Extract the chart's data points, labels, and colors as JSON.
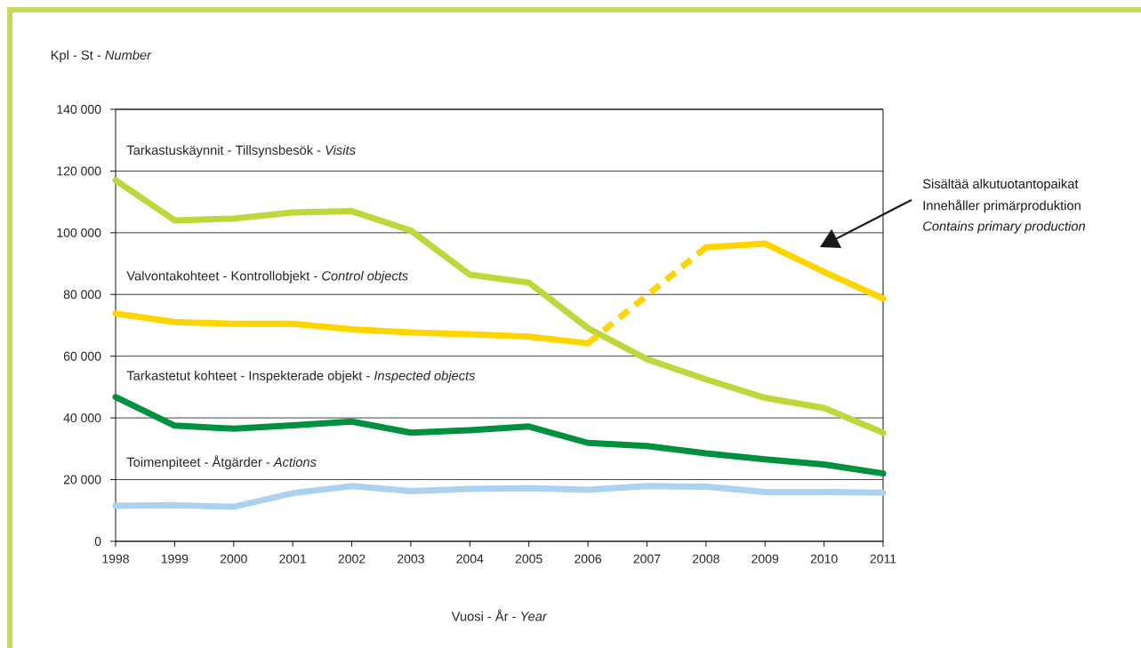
{
  "chart_data": {
    "type": "line",
    "xlabel": "Vuosi - År - *Year*",
    "ylabel": "Kpl - St - *Number*",
    "x": [
      1998,
      1999,
      2000,
      2001,
      2002,
      2003,
      2004,
      2005,
      2006,
      2007,
      2008,
      2009,
      2010,
      2011
    ],
    "xlim": [
      1998,
      2011
    ],
    "xticks": [
      1998,
      1999,
      2000,
      2001,
      2002,
      2003,
      2004,
      2005,
      2006,
      2007,
      2008,
      2009,
      2010,
      2011
    ],
    "ylim": [
      0,
      140000
    ],
    "yticks": [
      0,
      {
        "value": 20000,
        "label": "20 000"
      },
      {
        "value": 40000,
        "label": "40 000"
      },
      {
        "value": 60000,
        "label": "60 000"
      },
      {
        "value": 80000,
        "label": "80 000"
      },
      {
        "value": 100000,
        "label": "100 000"
      },
      {
        "value": 120000,
        "label": "120 000"
      },
      {
        "value": 140000,
        "label": "140 000"
      }
    ],
    "grid": "y",
    "series": [
      {
        "name": "Tarkastuskäynnit - Tillsynsbesök - *Visits*",
        "color": "#bed73b",
        "values": [
          117000,
          104000,
          104600,
          106600,
          107000,
          100700,
          86400,
          83800,
          69100,
          59000,
          52500,
          46500,
          43200,
          35200
        ]
      },
      {
        "name": "Valvontakohteet - Kontrollobjekt - *Control objects*",
        "color": "#ffd500",
        "values": [
          73800,
          71100,
          70500,
          70500,
          68700,
          67700,
          67100,
          66300,
          64200,
          null,
          95300,
          96500,
          87300,
          78700
        ]
      },
      {
        "color": "#ffd400",
        "line_style": "dashed",
        "x": [
          2006,
          2007,
          2008
        ],
        "values": [
          64200,
          79700,
          95300
        ]
      },
      {
        "name": "Tarkastetut kohteet - Inspekterade objekt - *Inspected objects*",
        "color": "#00913f",
        "values": [
          46800,
          37500,
          36500,
          37600,
          38800,
          35200,
          36000,
          37200,
          31900,
          30900,
          28500,
          26600,
          24900,
          22000
        ]
      },
      {
        "name": "Toimenpiteet - Åtgärder - *Actions*",
        "color": "#acd2ef",
        "values": [
          11500,
          11700,
          11200,
          15600,
          17900,
          16300,
          17000,
          17200,
          16700,
          17900,
          17700,
          16000,
          16000,
          15800
        ]
      }
    ],
    "annotations": [
      "Sisältää alkutuotantopaikat",
      "Innehåller primärproduktion",
      "*Contains primary production*"
    ]
  }
}
